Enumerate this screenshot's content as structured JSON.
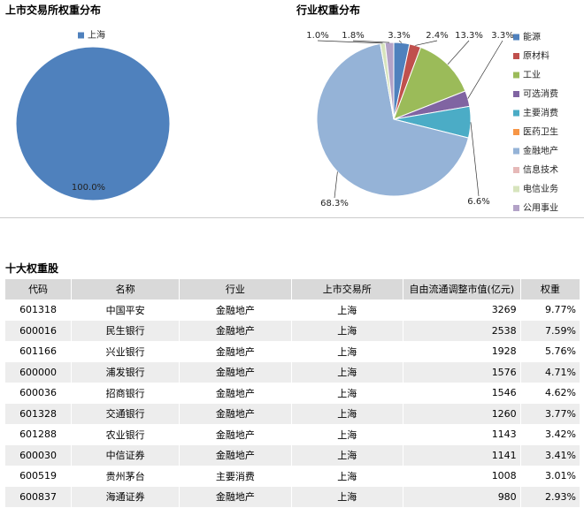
{
  "chart_data": [
    {
      "type": "pie",
      "title": "上市交易所权重分布",
      "categories": [
        "上海"
      ],
      "values": [
        100.0
      ],
      "value_labels": [
        "100.0%"
      ],
      "colors": [
        "#4f81bd"
      ],
      "legend": "top"
    },
    {
      "type": "pie",
      "title": "行业权重分布",
      "categories": [
        "能源",
        "原材料",
        "工业",
        "可选消费",
        "主要消费",
        "医药卫生",
        "金融地产",
        "信息技术",
        "电信业务",
        "公用事业"
      ],
      "values": [
        3.3,
        2.4,
        13.3,
        3.3,
        6.6,
        0,
        68.3,
        0,
        1.0,
        1.8
      ],
      "value_labels": [
        "3.3%",
        "2.4%",
        "13.3%",
        "3.3%",
        "6.6%",
        null,
        "68.3%",
        null,
        "1.0%",
        "1.8%"
      ],
      "colors": [
        "#4f81bd",
        "#c0504d",
        "#9bbb59",
        "#8064a2",
        "#4bacc6",
        "#f79646",
        "#95b3d7",
        "#e6b9b8",
        "#d7e4bd",
        "#b3a2c7"
      ],
      "legend": "right"
    }
  ],
  "table": {
    "title": "十大权重股",
    "header": [
      "代码",
      "名称",
      "行业",
      "上市交易所",
      "自由流通调整市值(亿元)",
      "权重"
    ],
    "rows": [
      [
        "601318",
        "中国平安",
        "金融地产",
        "上海",
        "3269",
        "9.77%"
      ],
      [
        "600016",
        "民生银行",
        "金融地产",
        "上海",
        "2538",
        "7.59%"
      ],
      [
        "601166",
        "兴业银行",
        "金融地产",
        "上海",
        "1928",
        "5.76%"
      ],
      [
        "600000",
        "浦发银行",
        "金融地产",
        "上海",
        "1576",
        "4.71%"
      ],
      [
        "600036",
        "招商银行",
        "金融地产",
        "上海",
        "1546",
        "4.62%"
      ],
      [
        "601328",
        "交通银行",
        "金融地产",
        "上海",
        "1260",
        "3.77%"
      ],
      [
        "601288",
        "农业银行",
        "金融地产",
        "上海",
        "1143",
        "3.42%"
      ],
      [
        "600030",
        "中信证券",
        "金融地产",
        "上海",
        "1141",
        "3.41%"
      ],
      [
        "600519",
        "贵州茅台",
        "主要消费",
        "上海",
        "1008",
        "3.01%"
      ],
      [
        "600837",
        "海通证券",
        "金融地产",
        "上海",
        "980",
        "2.93%"
      ]
    ]
  }
}
